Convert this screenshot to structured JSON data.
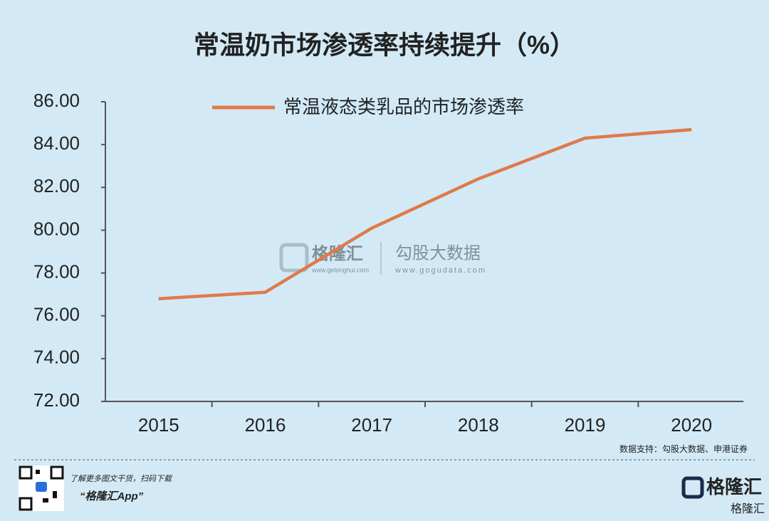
{
  "chart_data": {
    "type": "line",
    "title": "常温奶市场渗透率持续提升（%）",
    "categories": [
      "2015",
      "2016",
      "2017",
      "2018",
      "2019",
      "2020"
    ],
    "series": [
      {
        "name": "常温液态类乳品的市场渗透率",
        "color": "#e07a4a",
        "values": [
          76.8,
          77.1,
          80.1,
          82.4,
          84.3,
          84.7
        ]
      }
    ],
    "ylim": [
      72,
      86
    ],
    "yticks": [
      {
        "value": 72,
        "label": "72.00"
      },
      {
        "value": 74,
        "label": "74.00"
      },
      {
        "value": 76,
        "label": "76.00"
      },
      {
        "value": 78,
        "label": "78.00"
      },
      {
        "value": 80,
        "label": "80.00"
      },
      {
        "value": 82,
        "label": "82.00"
      },
      {
        "value": 84,
        "label": "84.00"
      },
      {
        "value": 86,
        "label": "86.00"
      }
    ],
    "grid": false,
    "legend": "top",
    "source": "数据支持：勾股大数据、申港证券"
  },
  "watermark": {
    "brand": "格隆汇",
    "brand_url": "www.gelonghui.com",
    "partner": "勾股大数据",
    "partner_url": "www.gogudata.com"
  },
  "footer": {
    "prompt": "了解更多图文干货，扫码下载",
    "app": "“格隆汇App”",
    "brand": "格隆汇",
    "corner": "格隆汇"
  }
}
